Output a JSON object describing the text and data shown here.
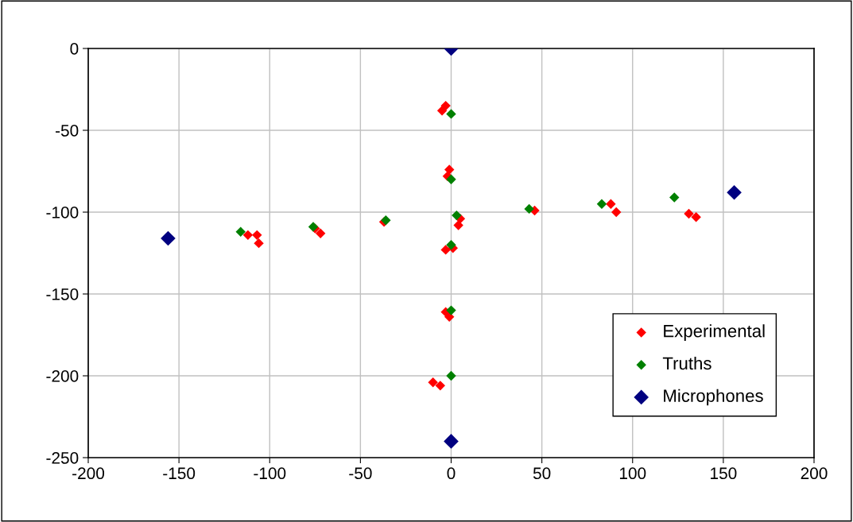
{
  "chart_data": {
    "type": "scatter",
    "marker": "diamond",
    "grid": true,
    "legend": "bottom right",
    "xlim": [
      -200,
      200
    ],
    "xticks": [
      -200,
      -150,
      -100,
      -50,
      0,
      50,
      100,
      150,
      200
    ],
    "ylim": [
      -250,
      0
    ],
    "yticks": [
      -250,
      -200,
      -150,
      -100,
      -50,
      0
    ],
    "series": [
      {
        "name": "Experimental",
        "color": "#ff0000",
        "x": [
          -112,
          -107,
          -106,
          -75,
          -72,
          -37,
          -5,
          -3,
          -1,
          -2,
          4,
          5,
          -3,
          1,
          -3,
          -1,
          -10,
          -6,
          46,
          88,
          91,
          131,
          135
        ],
        "values": [
          -114,
          -114,
          -119,
          -110,
          -113,
          -106,
          -38,
          -35,
          -74,
          -78,
          -108,
          -104,
          -123,
          -122,
          -161,
          -164,
          -204,
          -206,
          -99,
          -95,
          -100,
          -101,
          -103
        ]
      },
      {
        "name": "Truths",
        "color": "#008000",
        "x": [
          -116,
          -76,
          -36,
          0,
          0,
          0,
          3,
          43,
          83,
          123,
          0,
          0
        ],
        "values": [
          -112,
          -109,
          -105,
          -40,
          -80,
          -120,
          -102,
          -98,
          -95,
          -91,
          -160,
          -200
        ]
      },
      {
        "name": "Microphones",
        "color": "#000080",
        "x": [
          0,
          -156,
          156,
          0
        ],
        "values": [
          0,
          -116,
          -88,
          -240
        ]
      }
    ]
  }
}
